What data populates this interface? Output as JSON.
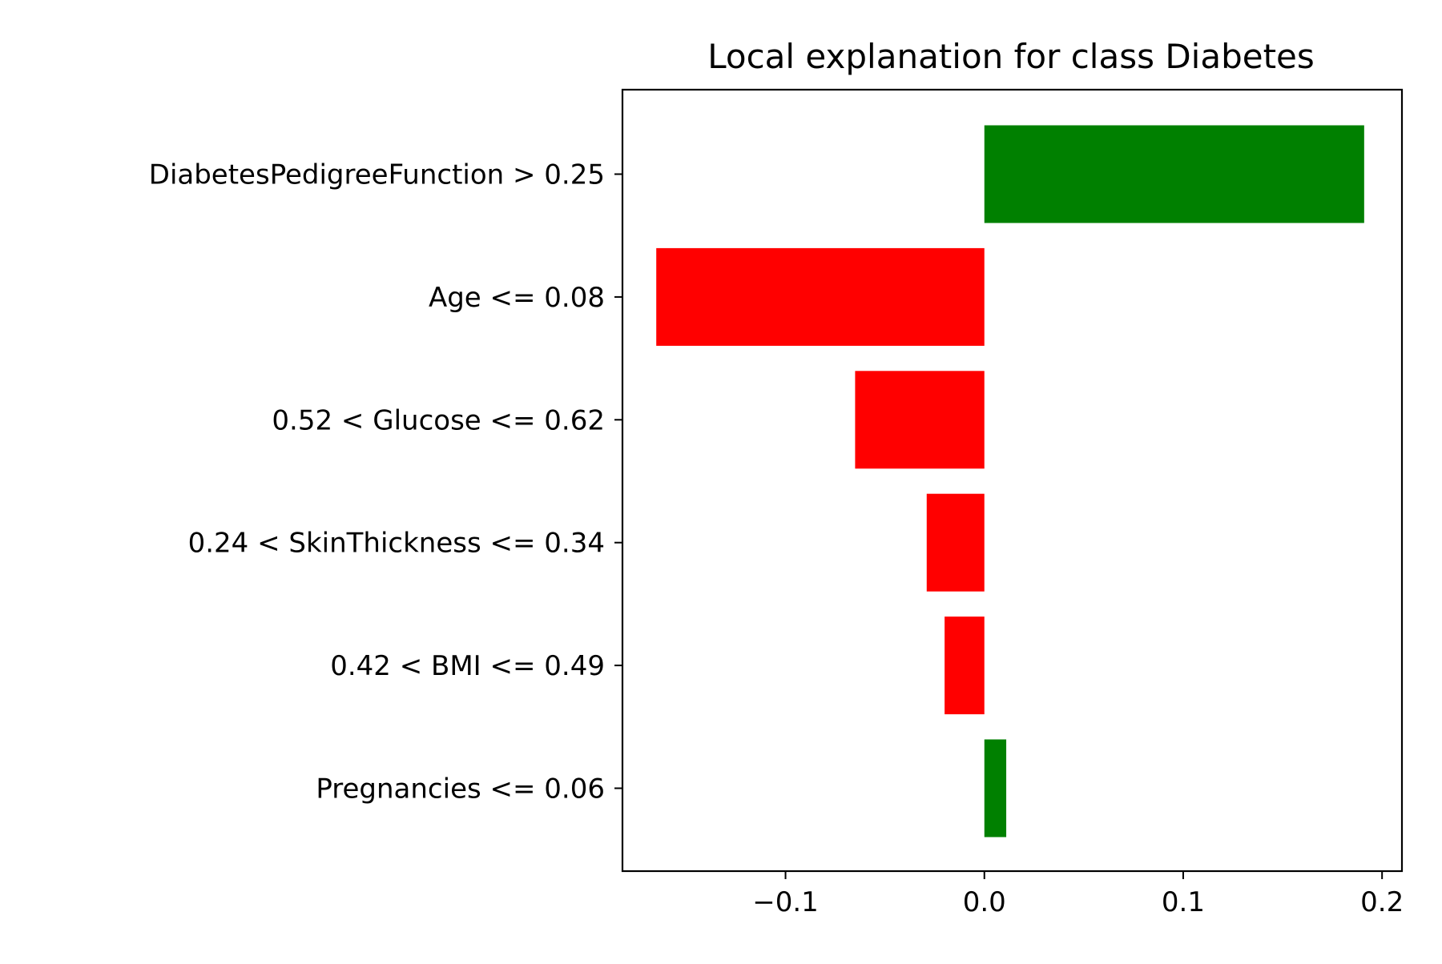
{
  "chart_data": {
    "type": "bar",
    "orientation": "horizontal",
    "title": "Local explanation for class Diabetes",
    "xlabel": "",
    "ylabel": "",
    "categories": [
      "DiabetesPedigreeFunction > 0.25",
      "Age <= 0.08",
      "0.52 < Glucose <= 0.62",
      "0.24 < SkinThickness <= 0.34",
      "0.42 < BMI <= 0.49",
      "Pregnancies <= 0.06"
    ],
    "values": [
      0.191,
      -0.165,
      -0.065,
      -0.029,
      -0.02,
      0.011
    ],
    "xlim": [
      -0.182,
      0.21
    ],
    "xticks": [
      -0.1,
      0.0,
      0.1,
      0.2
    ],
    "xtick_labels": [
      "−0.1",
      "0.0",
      "0.1",
      "0.2"
    ],
    "grid": false,
    "legend": "none",
    "colors": {
      "positive": "#008000",
      "negative": "#ff0000",
      "axes": "#000000"
    }
  }
}
